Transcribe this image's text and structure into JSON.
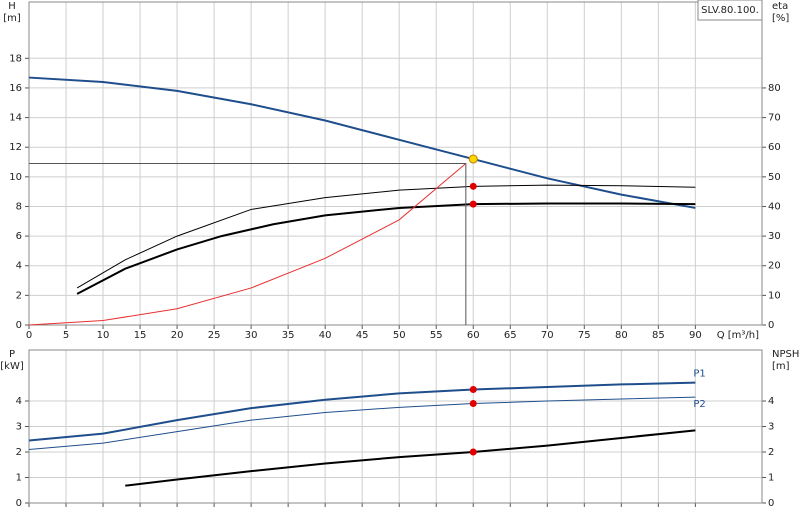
{
  "chart_data": [
    {
      "type": "line",
      "ylabel": "H",
      "yunit": "[m]",
      "y2label": "eta",
      "y2unit": "[%]",
      "xlabel": "Q [m³/h]",
      "annotation": "SLV.80.100.",
      "xlim": [
        0,
        99
      ],
      "xticks": [
        0,
        5,
        10,
        15,
        20,
        25,
        30,
        35,
        40,
        45,
        50,
        55,
        60,
        65,
        70,
        75,
        80,
        85,
        90
      ],
      "ylim": [
        0,
        21.8
      ],
      "yticks": [
        0,
        2,
        4,
        6,
        8,
        10,
        12,
        14,
        16,
        18
      ],
      "y2lim": [
        0,
        109
      ],
      "y2ticks": [
        0,
        10,
        20,
        30,
        40,
        50,
        60,
        70,
        80
      ],
      "grid": true,
      "series": [
        {
          "color": "#1f4e8c",
          "width": 2,
          "x": [
            0,
            10,
            20,
            30,
            40,
            50,
            60,
            70,
            80,
            90
          ],
          "values": [
            16.7,
            16.4,
            15.8,
            14.9,
            13.8,
            12.5,
            11.2,
            9.9,
            8.8,
            7.9
          ]
        },
        {
          "color": "#000000",
          "width": 1,
          "axis": "y2",
          "x": [
            6.5,
            13,
            20,
            30,
            40,
            50,
            60,
            70,
            80,
            90
          ],
          "values": [
            12.5,
            22,
            30,
            39,
            43,
            45.5,
            46.8,
            47.2,
            47,
            46.5
          ]
        },
        {
          "color": "#000000",
          "width": 2,
          "axis": "y2",
          "x": [
            6.5,
            13,
            20,
            26,
            33,
            40,
            50,
            60,
            70,
            80,
            90
          ],
          "values": [
            10.5,
            19,
            25.5,
            30,
            34,
            37,
            39.5,
            40.8,
            41,
            41,
            40.8
          ]
        },
        {
          "color": "#e83030",
          "width": 1,
          "x": [
            0,
            10,
            20,
            30,
            40,
            50,
            59
          ],
          "values": [
            0,
            0.3,
            1.1,
            2.5,
            4.5,
            7.1,
            10.9
          ]
        },
        {
          "color": "#555555",
          "width": 1,
          "x": [
            0,
            59,
            59
          ],
          "values": [
            10.9,
            10.9,
            0
          ]
        },
        {
          "color": "#ffd700",
          "style": "points",
          "x": [
            60
          ],
          "values": [
            11.2
          ]
        },
        {
          "color": "#e00000",
          "style": "points",
          "axis": "y2",
          "x": [
            60,
            60
          ],
          "values": [
            46.8,
            40.8
          ]
        }
      ]
    },
    {
      "type": "line",
      "ylabel": "P",
      "yunit": "[kW]",
      "y2label": "NPSH",
      "y2unit": "[m]",
      "xlim": [
        0,
        99
      ],
      "ylim": [
        0,
        6
      ],
      "yticks": [
        0,
        1,
        2,
        3,
        4
      ],
      "y2lim": [
        0,
        6
      ],
      "y2ticks": [
        0,
        1,
        2,
        3,
        4
      ],
      "grid": true,
      "series": [
        {
          "name": "P1",
          "color": "#1f4e8c",
          "width": 2,
          "x": [
            0,
            10,
            20,
            30,
            40,
            50,
            60,
            70,
            80,
            90
          ],
          "values": [
            2.45,
            2.72,
            3.25,
            3.72,
            4.05,
            4.3,
            4.45,
            4.55,
            4.65,
            4.72
          ]
        },
        {
          "name": "P2",
          "color": "#1f4e8c",
          "width": 1,
          "x": [
            0,
            10,
            20,
            30,
            40,
            50,
            60,
            70,
            80,
            90
          ],
          "values": [
            2.1,
            2.35,
            2.8,
            3.25,
            3.55,
            3.75,
            3.9,
            4.0,
            4.08,
            4.15
          ]
        },
        {
          "color": "#000000",
          "width": 2,
          "axis": "y2",
          "x": [
            13,
            20,
            30,
            40,
            50,
            60,
            70,
            80,
            90
          ],
          "values": [
            0.68,
            0.92,
            1.25,
            1.55,
            1.8,
            2.0,
            2.25,
            2.55,
            2.85
          ]
        },
        {
          "color": "#e00000",
          "style": "points",
          "x": [
            60,
            60
          ],
          "values": [
            4.45,
            3.9
          ]
        },
        {
          "color": "#e00000",
          "style": "points",
          "axis": "y2",
          "x": [
            60
          ],
          "values": [
            2.0
          ]
        }
      ]
    }
  ]
}
